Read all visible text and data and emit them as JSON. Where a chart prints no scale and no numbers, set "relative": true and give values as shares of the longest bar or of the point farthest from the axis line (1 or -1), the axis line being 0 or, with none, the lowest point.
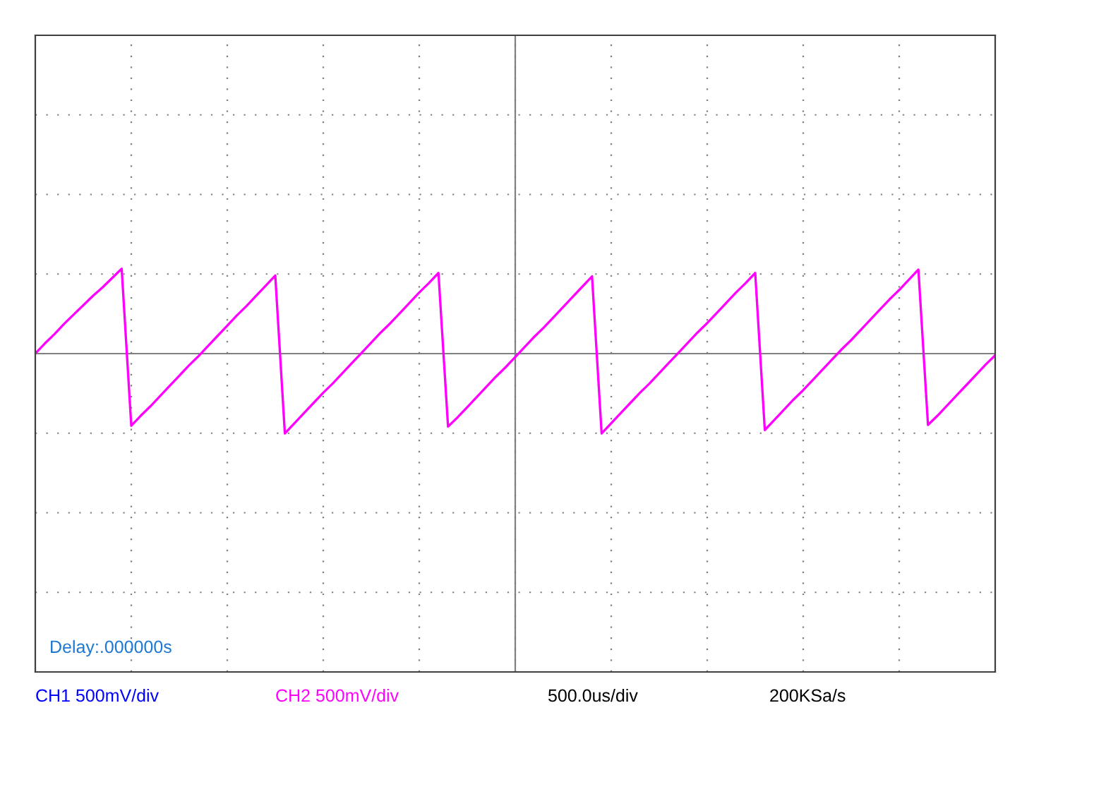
{
  "chart_data": {
    "type": "line",
    "relative": true,
    "grid": true,
    "tick_labels": false,
    "legend": false,
    "marker": "none",
    "line_style": "solid",
    "categories": [
      null,
      null,
      null,
      null,
      null,
      null,
      null,
      null,
      null,
      null,
      null,
      null,
      null,
      null,
      null,
      null,
      null,
      null,
      null,
      null,
      null,
      null,
      null,
      null,
      null,
      null,
      null,
      null,
      null,
      null,
      null,
      null,
      null,
      null,
      null,
      null,
      null,
      null,
      null,
      null,
      null,
      null,
      null,
      null,
      null,
      null,
      null,
      null,
      null,
      null,
      null,
      null,
      null,
      null,
      null,
      null,
      null,
      null,
      null,
      null,
      null,
      null,
      null,
      null,
      null,
      null,
      null,
      null,
      null,
      null,
      null,
      null,
      null,
      null,
      null,
      null,
      null,
      null,
      null,
      null,
      null,
      null,
      null,
      null,
      null,
      null,
      null,
      null,
      null,
      null,
      null,
      null,
      null,
      null,
      null,
      null,
      null,
      null,
      null,
      null,
      null
    ],
    "series": [
      {
        "color": "#ff00ff",
        "values": [
          0.0,
          0.12,
          0.23,
          0.35,
          0.46,
          0.57,
          0.68,
          0.78,
          0.89,
          1.0,
          -0.85,
          -0.73,
          -0.62,
          -0.5,
          -0.38,
          -0.26,
          -0.14,
          -0.03,
          0.09,
          0.21,
          0.33,
          0.45,
          0.56,
          0.68,
          0.8,
          0.92,
          -0.94,
          -0.82,
          -0.7,
          -0.58,
          -0.46,
          -0.35,
          -0.23,
          -0.11,
          0.01,
          0.13,
          0.25,
          0.36,
          0.48,
          0.6,
          0.72,
          0.83,
          0.95,
          -0.86,
          -0.75,
          -0.63,
          -0.51,
          -0.39,
          -0.27,
          -0.16,
          -0.04,
          0.08,
          0.2,
          0.31,
          0.43,
          0.55,
          0.67,
          0.79,
          0.91,
          -0.94,
          -0.82,
          -0.7,
          -0.58,
          -0.46,
          -0.35,
          -0.23,
          -0.11,
          0.01,
          0.13,
          0.25,
          0.36,
          0.48,
          0.6,
          0.72,
          0.83,
          0.95,
          -0.9,
          -0.78,
          -0.66,
          -0.54,
          -0.43,
          -0.31,
          -0.19,
          -0.07,
          0.05,
          0.16,
          0.28,
          0.4,
          0.52,
          0.64,
          0.75,
          0.87,
          0.99,
          -0.84,
          -0.73,
          -0.61,
          -0.49,
          -0.37,
          -0.25,
          -0.13,
          -0.02
        ]
      }
    ],
    "annotations": [
      "Delay:.000000s",
      "CH1 500mV/div",
      "CH2 500mV/div",
      "500.0us/div",
      "200KSa/s"
    ]
  }
}
